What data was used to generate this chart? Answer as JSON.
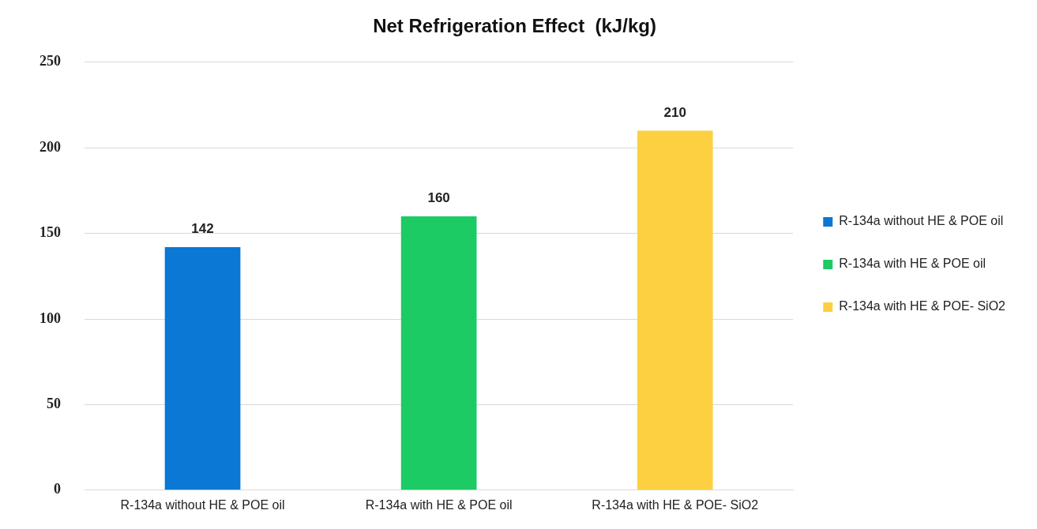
{
  "chart_data": {
    "type": "bar",
    "title": "Net Refrigeration Effect  (kJ/kg)",
    "categories": [
      "R-134a without HE & POE oil",
      "R-134a with HE & POE oil",
      "R-134a with HE & POE- SiO2"
    ],
    "series": [
      {
        "name": "R-134a without HE & POE oil",
        "color": "#0a78d4",
        "values": [
          142,
          null,
          null
        ]
      },
      {
        "name": "R-134a with HE & POE oil",
        "color": "#1ccb64",
        "values": [
          null,
          160,
          null
        ]
      },
      {
        "name": "R-134a with HE & POE- SiO2",
        "color": "#fcd040",
        "values": [
          null,
          null,
          210
        ]
      }
    ],
    "ylim": [
      0,
      250
    ],
    "yticks": [
      0,
      50,
      100,
      150,
      200,
      250
    ],
    "grid": "y",
    "legend": "right",
    "data_labels": true
  }
}
